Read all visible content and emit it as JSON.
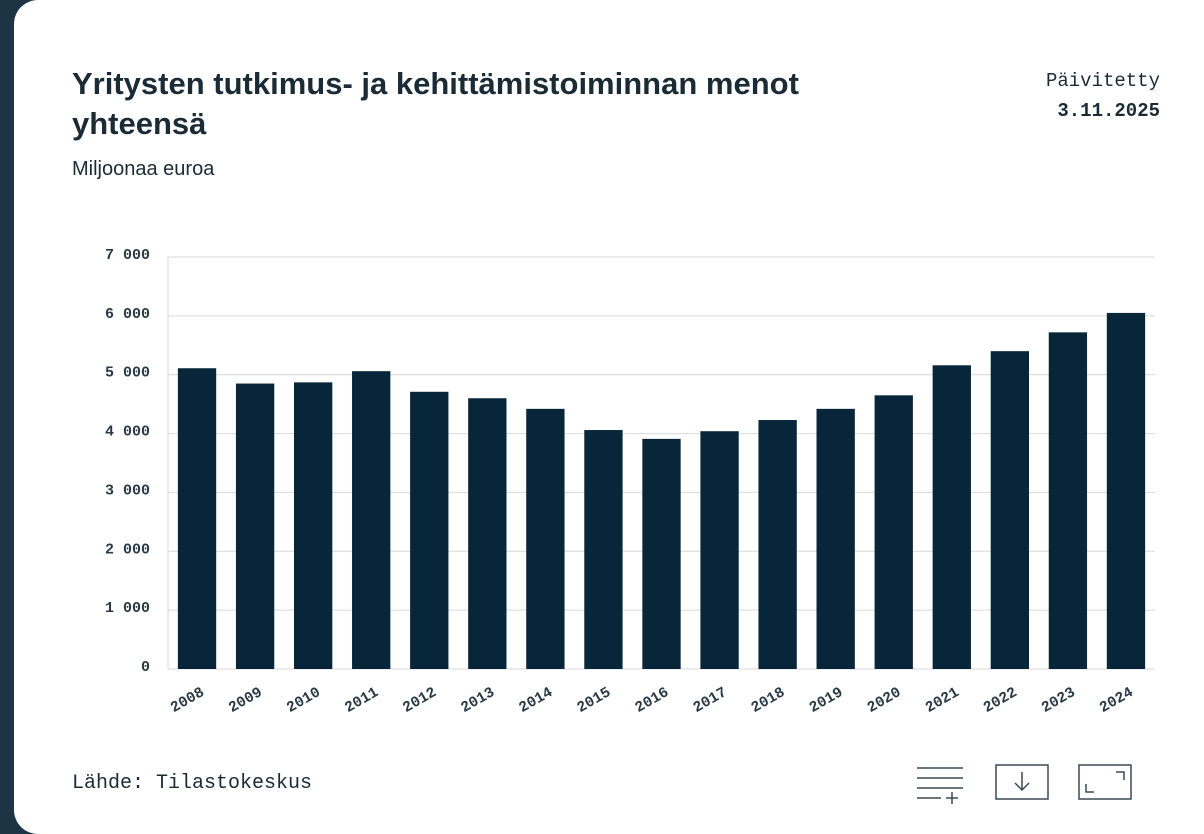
{
  "chart_data": {
    "type": "bar",
    "title": "Yritysten tutkimus- ja kehittämistoiminnan menot yhteensä",
    "subtitle": "Miljoonaa euroa",
    "updated_label": "Päivitetty",
    "updated_date": "3.11.2025",
    "source": "Lähde: Tilastokeskus",
    "categories": [
      "2008",
      "2009",
      "2010",
      "2011",
      "2012",
      "2013",
      "2014",
      "2015",
      "2016",
      "2017",
      "2018",
      "2019",
      "2020",
      "2021",
      "2022",
      "2023",
      "2024"
    ],
    "values": [
      5110,
      4850,
      4870,
      5060,
      4710,
      4600,
      4420,
      4060,
      3910,
      4040,
      4230,
      4420,
      4650,
      5160,
      5400,
      5720,
      6050
    ],
    "color": "#08263a",
    "ylim": [
      0,
      7000
    ],
    "yticks": [
      0,
      {
        "value": 1000,
        "label": "1 000"
      },
      {
        "value": 2000,
        "label": "2 000"
      },
      {
        "value": 3000,
        "label": "3 000"
      },
      {
        "value": 4000,
        "label": "4 000"
      },
      {
        "value": 5000,
        "label": "5 000"
      },
      {
        "value": 6000,
        "label": "6 000"
      },
      {
        "value": 7000,
        "label": "7 000"
      }
    ],
    "grid": true
  }
}
